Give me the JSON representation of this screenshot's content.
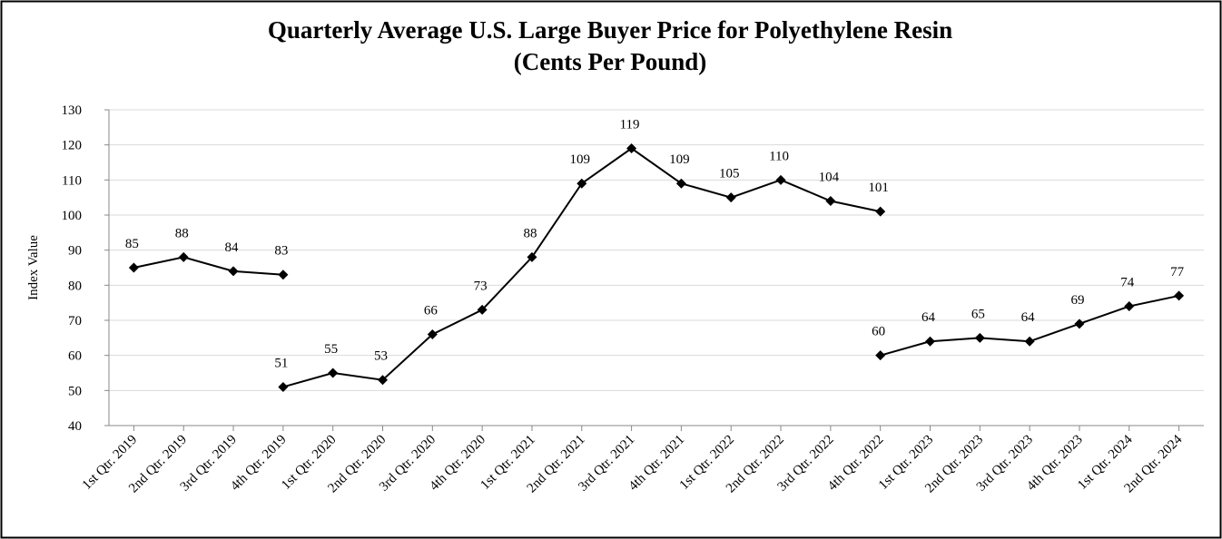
{
  "chart_data": {
    "type": "line",
    "title": "Quarterly Average U.S. Large Buyer Price for Polyethylene Resin",
    "subtitle": "(Cents Per Pound)",
    "y_label": "Index Value",
    "categories": [
      "1st Qtr. 2019",
      "2nd Qtr. 2019",
      "3rd Qtr. 2019",
      "4th Qtr. 2019",
      "1st Qtr. 2020",
      "2nd Qtr. 2020",
      "3rd Qtr. 2020",
      "4th Qtr. 2020",
      "1st Qtr. 2021",
      "2nd Qtr. 2021",
      "3rd Qtr. 2021",
      "4th Qtr. 2021",
      "1st Qtr. 2022",
      "2nd Qtr. 2022",
      "3rd Qtr. 2022",
      "4th Qtr. 2022",
      "1st Qtr. 2023",
      "2nd Qtr. 2023",
      "3rd Qtr. 2023",
      "4th Qtr. 2023",
      "1st Qtr. 2024",
      "2nd Qtr. 2024"
    ],
    "series": [
      {
        "color": "#000000",
        "values": [
          85,
          88,
          84,
          83,
          null,
          null,
          null,
          null,
          null,
          null,
          null,
          null,
          null,
          null,
          null,
          null,
          null,
          null,
          null,
          null,
          null,
          null
        ]
      },
      {
        "color": "#000000",
        "values": [
          null,
          null,
          null,
          51,
          55,
          53,
          66,
          73,
          88,
          109,
          119,
          109,
          105,
          110,
          104,
          101,
          null,
          null,
          null,
          null,
          null,
          null
        ]
      },
      {
        "color": "#000000",
        "values": [
          null,
          null,
          null,
          null,
          null,
          null,
          null,
          null,
          null,
          null,
          null,
          null,
          null,
          null,
          null,
          60,
          64,
          65,
          64,
          69,
          74,
          77
        ]
      }
    ],
    "ylim": [
      40,
      130
    ],
    "yticks": [
      40,
      50,
      60,
      70,
      80,
      90,
      100,
      110,
      120,
      130
    ],
    "grid": true
  }
}
